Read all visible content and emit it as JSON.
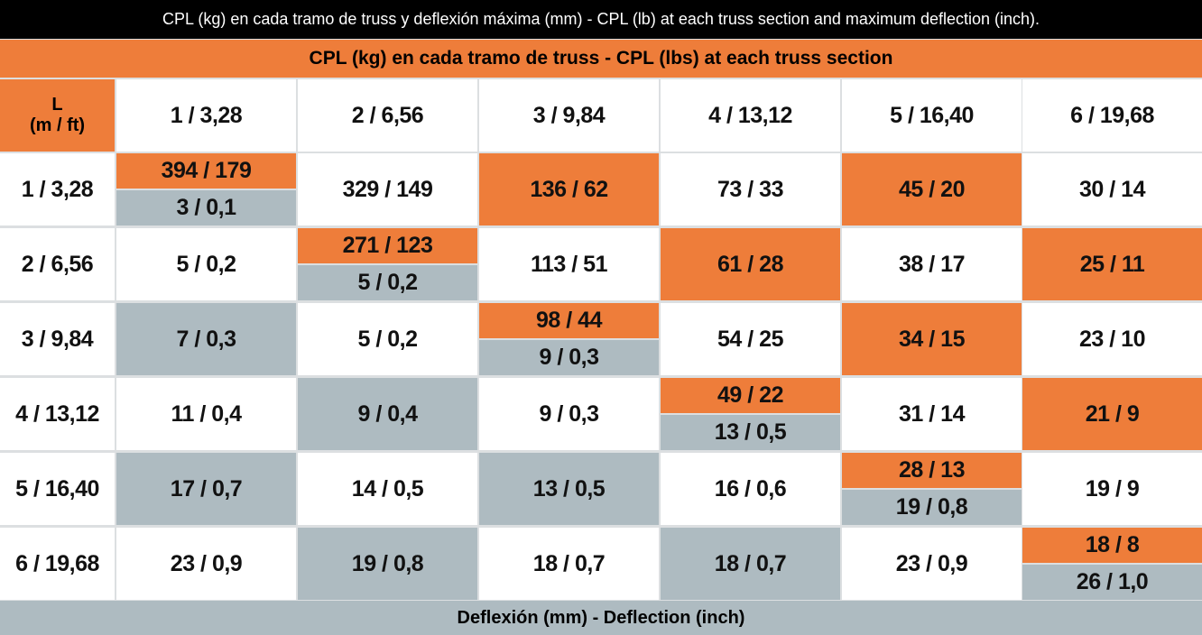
{
  "title": "CPL (kg) en cada tramo de truss y deflexión máxima (mm) - CPL (lb) at each truss section and maximum deflection (inch).",
  "section_header": "CPL (kg) en cada tramo de truss - CPL (lbs) at each truss section",
  "footer": "Deflexión (mm) - Deflection (inch)",
  "colors": {
    "orange": "#ee7d3a",
    "gray": "#aebbc1",
    "white": "#ffffff"
  },
  "table": {
    "corner": [
      "L",
      "(m / ft)"
    ],
    "columns": [
      "1 / 3,28",
      "2 / 6,56",
      "3 / 9,84",
      "4 / 13,12",
      "5 / 16,40",
      "6 / 19,68"
    ],
    "rows": [
      {
        "label": "1 / 3,28",
        "cells": [
          {
            "top": "394 / 179",
            "bottom": "3 / 0,1"
          },
          {
            "text": "329 / 149",
            "fill": "white"
          },
          {
            "text": "136 / 62",
            "fill": "orange"
          },
          {
            "text": "73 / 33",
            "fill": "white"
          },
          {
            "text": "45 / 20",
            "fill": "orange"
          },
          {
            "text": "30 / 14",
            "fill": "white"
          }
        ]
      },
      {
        "label": "2 / 6,56",
        "cells": [
          {
            "text": "5 / 0,2",
            "fill": "white"
          },
          {
            "top": "271 / 123",
            "bottom": "5 / 0,2"
          },
          {
            "text": "113 / 51",
            "fill": "white"
          },
          {
            "text": "61 / 28",
            "fill": "orange"
          },
          {
            "text": "38 / 17",
            "fill": "white"
          },
          {
            "text": "25 / 11",
            "fill": "orange"
          }
        ]
      },
      {
        "label": "3 / 9,84",
        "cells": [
          {
            "text": "7 / 0,3",
            "fill": "gray"
          },
          {
            "text": "5 / 0,2",
            "fill": "white"
          },
          {
            "top": "98 / 44",
            "bottom": "9 / 0,3"
          },
          {
            "text": "54 / 25",
            "fill": "white"
          },
          {
            "text": "34 / 15",
            "fill": "orange"
          },
          {
            "text": "23 / 10",
            "fill": "white"
          }
        ]
      },
      {
        "label": "4 / 13,12",
        "cells": [
          {
            "text": "11 / 0,4",
            "fill": "white"
          },
          {
            "text": "9 / 0,4",
            "fill": "gray"
          },
          {
            "text": "9 / 0,3",
            "fill": "white"
          },
          {
            "top": "49 / 22",
            "bottom": "13 / 0,5"
          },
          {
            "text": "31 / 14",
            "fill": "white"
          },
          {
            "text": "21 / 9",
            "fill": "orange"
          }
        ]
      },
      {
        "label": "5 / 16,40",
        "cells": [
          {
            "text": "17 / 0,7",
            "fill": "gray"
          },
          {
            "text": "14 / 0,5",
            "fill": "white"
          },
          {
            "text": "13 / 0,5",
            "fill": "gray"
          },
          {
            "text": "16 / 0,6",
            "fill": "white"
          },
          {
            "top": "28 / 13",
            "bottom": "19 / 0,8"
          },
          {
            "text": "19 / 9",
            "fill": "white"
          }
        ]
      },
      {
        "label": "6 / 19,68",
        "cells": [
          {
            "text": "23 / 0,9",
            "fill": "white"
          },
          {
            "text": "19 / 0,8",
            "fill": "gray"
          },
          {
            "text": "18 / 0,7",
            "fill": "white"
          },
          {
            "text": "18 / 0,7",
            "fill": "gray"
          },
          {
            "text": "23 / 0,9",
            "fill": "white"
          },
          {
            "top": "18 / 8",
            "bottom": "26 / 1,0"
          }
        ]
      }
    ]
  }
}
